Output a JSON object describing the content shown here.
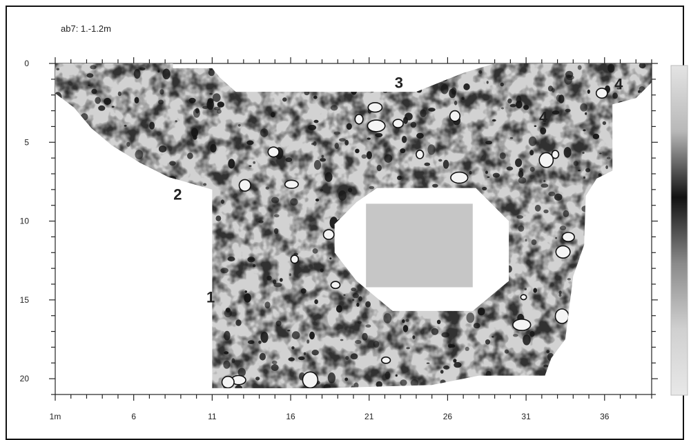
{
  "chart_data": {
    "type": "heatmap",
    "title": "ab7: 1.-1.2m",
    "x_ticks": [
      "1m",
      "6",
      "11",
      "16",
      "21",
      "26",
      "31",
      "36"
    ],
    "x_tick_values": [
      1,
      6,
      11,
      16,
      21,
      26,
      31,
      36
    ],
    "y_ticks": [
      "0",
      "5",
      "10",
      "15",
      "20"
    ],
    "y_tick_values": [
      0,
      5,
      10,
      15,
      20
    ],
    "xlim": [
      1,
      39
    ],
    "ylim": [
      0,
      21
    ],
    "y_inverted": true,
    "minor_tick_step": 1,
    "annotations": [
      {
        "text": "1",
        "x": 10.9,
        "y": 14.8
      },
      {
        "text": "2",
        "x": 8.8,
        "y": 8.3
      },
      {
        "text": "3",
        "x": 22.9,
        "y": 1.2
      },
      {
        "text": "4",
        "x": 32.1,
        "y": 3.4
      },
      {
        "text": "4",
        "x": 36.9,
        "y": 1.3
      }
    ],
    "colorbar": {
      "orientation": "vertical",
      "placement": "right",
      "colors": [
        "#e4e4e4",
        "#b8b8b8",
        "#111111",
        "#8a8a8a",
        "#d0d0d0",
        "#e8e8e8"
      ]
    },
    "survey_area_color": "#d2d2d2",
    "anomaly_color": "#141414"
  }
}
